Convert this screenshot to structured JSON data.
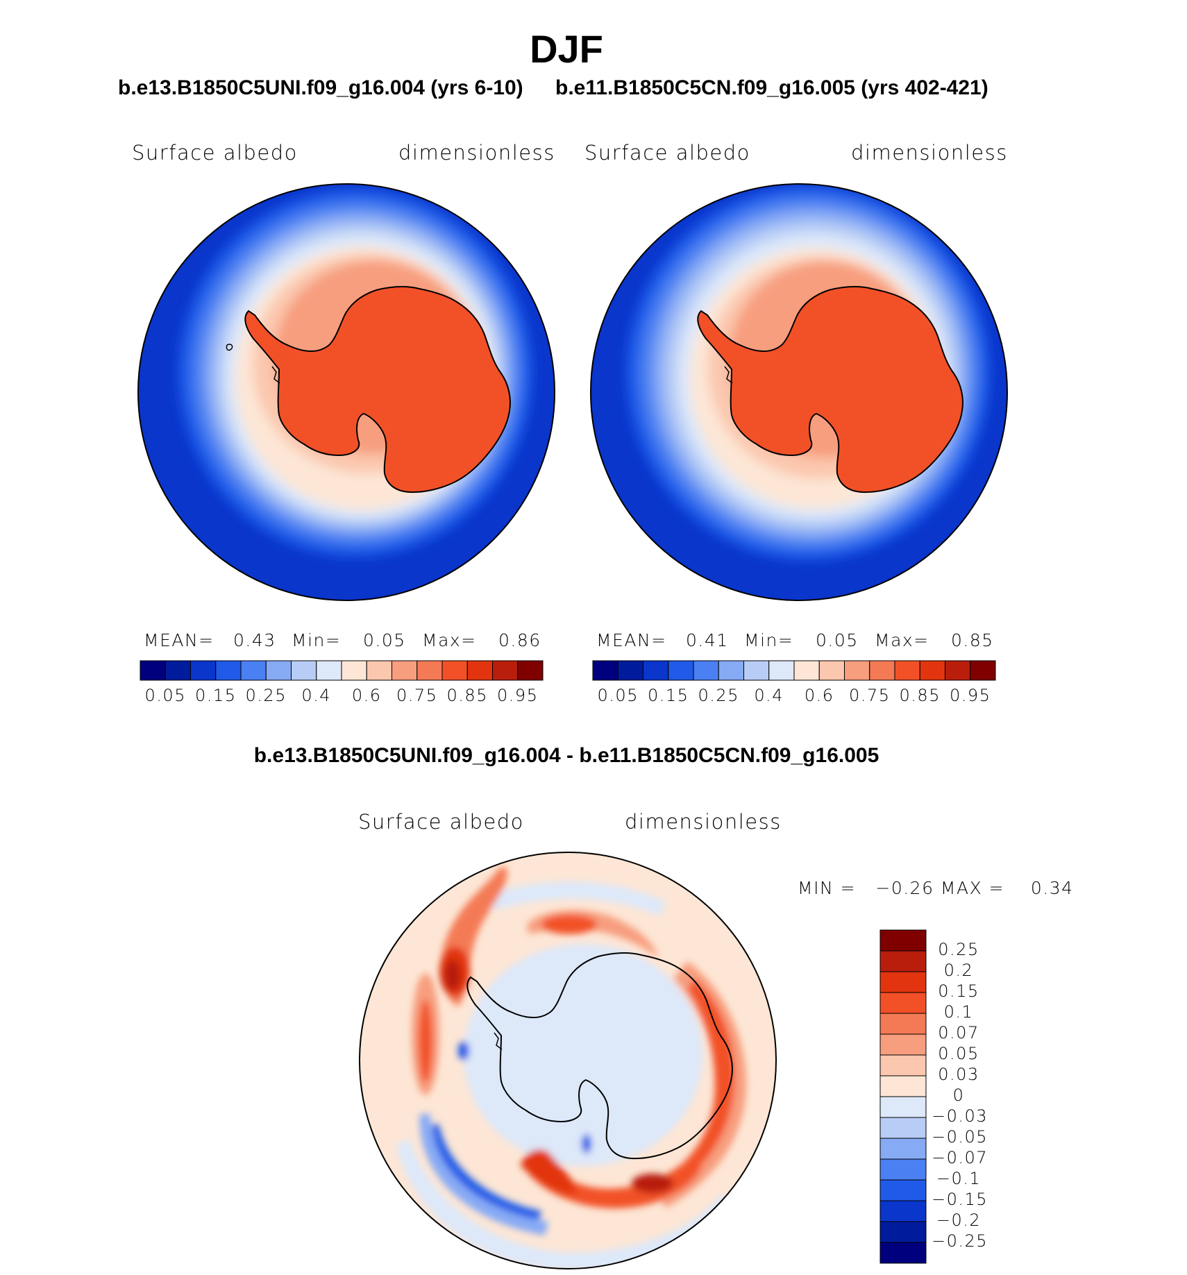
{
  "title": "DJF",
  "panels": [
    {
      "case_title": "b.e13.B1850C5UNI.f09_g16.004 (yrs 6-10)",
      "variable": "Surface albedo",
      "units": "dimensionless",
      "mean_label": "MEAN=",
      "mean_value": "0.43",
      "min_label": "Min=",
      "min_value": "0.05",
      "max_label": "Max=",
      "max_value": "0.86"
    },
    {
      "case_title": "b.e11.B1850C5CN.f09_g16.005 (yrs 402-421)",
      "variable": "Surface albedo",
      "units": "dimensionless",
      "mean_label": "MEAN=",
      "mean_value": "0.41",
      "min_label": "Min=",
      "min_value": "0.05",
      "max_label": "Max=",
      "max_value": "0.85"
    }
  ],
  "abs_colorbar": {
    "colors": [
      "#00007f",
      "#001b9c",
      "#0a36cc",
      "#1f5be8",
      "#4b80f2",
      "#87aaf5",
      "#b8cdf6",
      "#dde8f9",
      "#fde6d5",
      "#fbc7ae",
      "#f79e7e",
      "#f47a55",
      "#f25128",
      "#e2350f",
      "#b81e0b",
      "#800000"
    ],
    "tick_labels": [
      "0.05",
      "0.15",
      "0.25",
      "0.4",
      "0.6",
      "0.75",
      "0.85",
      "0.95"
    ]
  },
  "difference": {
    "title": "b.e13.B1850C5UNI.f09_g16.004 - b.e11.B1850C5CN.f09_g16.005",
    "variable": "Surface albedo",
    "units": "dimensionless",
    "minmax_text": "MIN =   −0.26 MAX =    0.34",
    "colorbar": {
      "colors": [
        "#800000",
        "#b81e0b",
        "#e2350f",
        "#f25128",
        "#f47a55",
        "#f79e7e",
        "#fbc7ae",
        "#fde6d5",
        "#dde8f9",
        "#b8cdf6",
        "#87aaf5",
        "#4b80f2",
        "#1f5be8",
        "#0a36cc",
        "#001b9c",
        "#00007f"
      ],
      "tick_labels": [
        "0.25",
        "0.2",
        "0.15",
        "0.1",
        "0.07",
        "0.05",
        "0.03",
        "0",
        "−0.03",
        "−0.05",
        "−0.07",
        "−0.1",
        "−0.15",
        "−0.2",
        "−0.25"
      ]
    }
  }
}
